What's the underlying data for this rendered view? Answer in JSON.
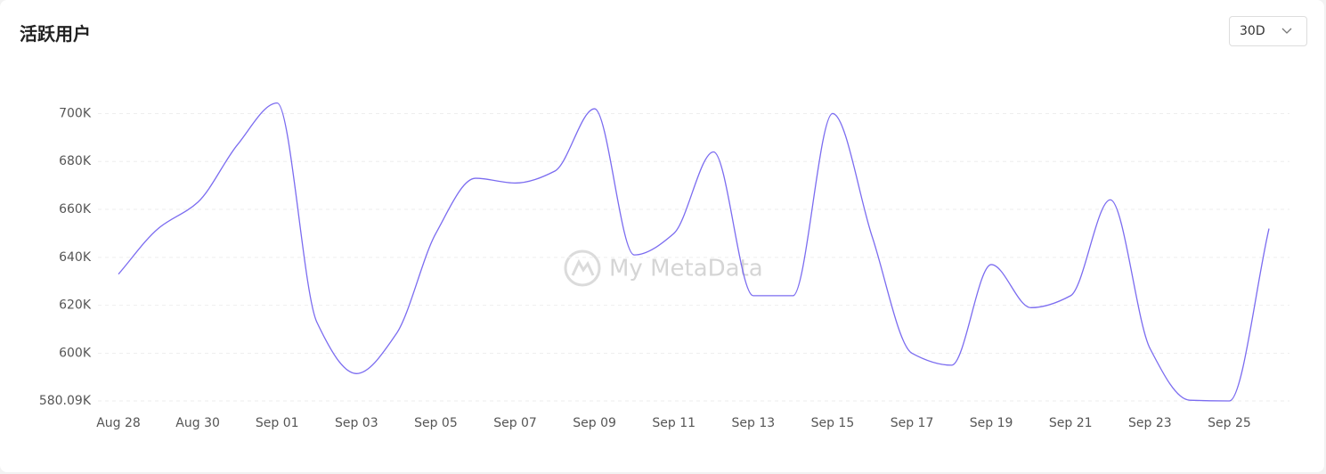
{
  "chart_data": {
    "type": "line",
    "title": "活跃用户",
    "range_selector": "30D",
    "watermark": "My MetaData",
    "categories": [
      "Aug 28",
      null,
      "Aug 30",
      null,
      "Sep 01",
      null,
      "Sep 03",
      null,
      "Sep 05",
      null,
      "Sep 07",
      null,
      "Sep 09",
      null,
      "Sep 11",
      null,
      "Sep 13",
      null,
      "Sep 15",
      null,
      "Sep 17",
      null,
      "Sep 19",
      null,
      "Sep 21",
      null,
      "Sep 23",
      null,
      "Sep 25",
      null
    ],
    "series": [
      {
        "name": "活跃用户",
        "color": "#7b6cf0",
        "values": [
          633000,
          652000,
          663000,
          687000,
          704400,
          613000,
          591500,
          608000,
          650000,
          673000,
          671000,
          676000,
          702000,
          641000,
          650000,
          684000,
          624000,
          624000,
          700000,
          648500,
          600000,
          595000,
          637000,
          619000,
          624000,
          664000,
          602000,
          580400,
          580090,
          652000
        ]
      }
    ],
    "ylim": [
      580090,
      705000
    ],
    "yticks": [
      {
        "value": 580090,
        "label": "580.09K"
      },
      {
        "value": 600000,
        "label": "600K"
      },
      {
        "value": 620000,
        "label": "620K"
      },
      {
        "value": 640000,
        "label": "640K"
      },
      {
        "value": 660000,
        "label": "660K"
      },
      {
        "value": 680000,
        "label": "680K"
      },
      {
        "value": 700000,
        "label": "700K"
      }
    ],
    "grid": true
  }
}
